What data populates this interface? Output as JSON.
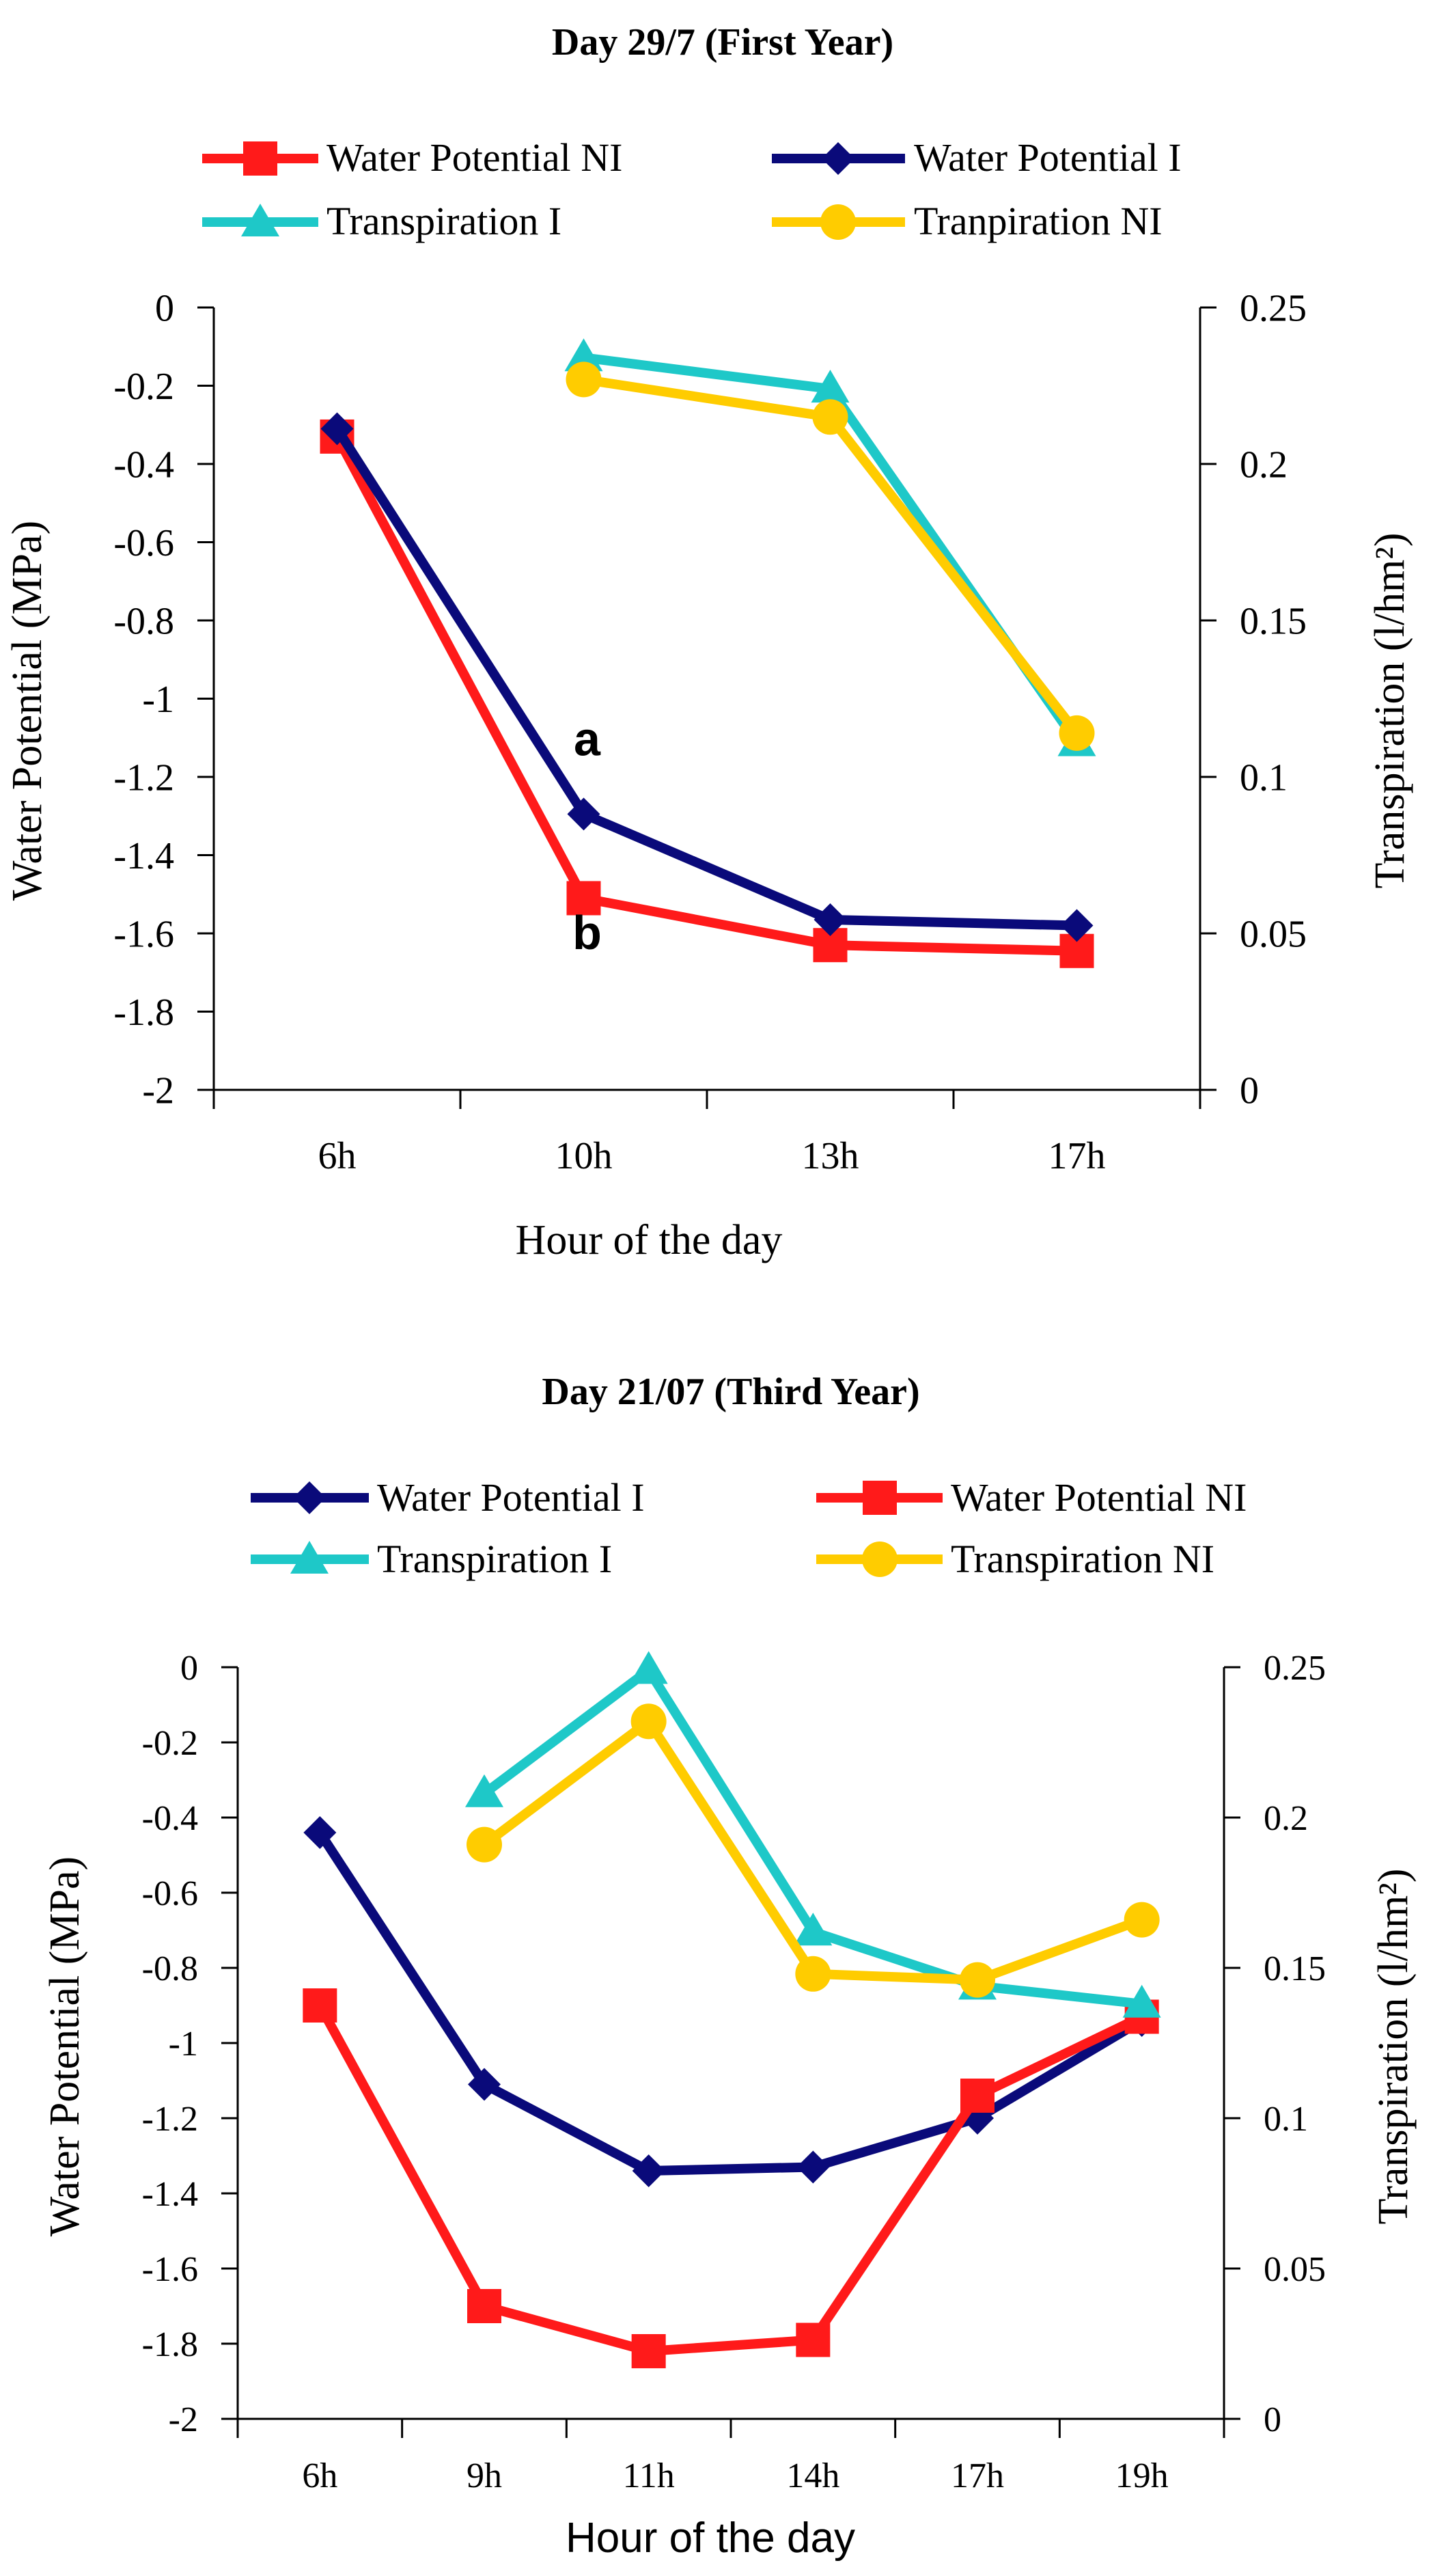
{
  "chart_data": [
    {
      "type": "line",
      "title": "Day 29/7 (First Year)",
      "xlabel": "Hour of the day",
      "ylabel": "Water Potential  (MPa)",
      "y2label": "Transpiration (l/hm²)",
      "categories": [
        "6h",
        "10h",
        "13h",
        "17h"
      ],
      "ylim": [
        -2,
        0
      ],
      "yticks": [
        "0",
        "-0.2",
        "-0.4",
        "-0.6",
        "-0.8",
        "-1",
        "-1.2",
        "-1.4",
        "-1.6",
        "-1.8",
        "-2"
      ],
      "y2lim": [
        0,
        0.25
      ],
      "y2ticks": [
        "0.25",
        "0.2",
        "0.15",
        "0.1",
        "0.05",
        "0"
      ],
      "legend": [
        "Water Potential NI",
        "Water Potential  I",
        "Transpiration I",
        "Tranpiration NI"
      ],
      "series": [
        {
          "name": "Water Potential NI",
          "axis": "left",
          "color": "#ff1a1a",
          "marker": "square",
          "values": [
            -0.33,
            -1.51,
            -1.63,
            -1.645
          ]
        },
        {
          "name": "Water Potential  I",
          "axis": "left",
          "color": "#0a0a7a",
          "marker": "diamond",
          "values": [
            -0.31,
            -1.295,
            -1.565,
            -1.58
          ]
        },
        {
          "name": "Transpiration I",
          "axis": "right",
          "color": "#1ec8c8",
          "marker": "triangle",
          "values": [
            null,
            0.234,
            0.224,
            0.111
          ]
        },
        {
          "name": "Tranpiration NI",
          "axis": "right",
          "color": "#ffcc00",
          "marker": "circle",
          "values": [
            null,
            0.227,
            0.215,
            0.114
          ]
        }
      ],
      "annotations": [
        {
          "text": "a",
          "category": "10h",
          "value": -1.145
        },
        {
          "text": "b",
          "category": "10h",
          "value": -1.64
        }
      ]
    },
    {
      "type": "line",
      "title": "Day 21/07 (Third Year)",
      "xlabel": "Hour of the day",
      "ylabel": "Water Potential (MPa)",
      "y2label": "Transpiration (l/hm²)",
      "categories": [
        "6h",
        "9h",
        "11h",
        "14h",
        "17h",
        "19h"
      ],
      "ylim": [
        -2,
        0
      ],
      "yticks": [
        "0",
        "-0.2",
        "-0.4",
        "-0.6",
        "-0.8",
        "-1",
        "-1.2",
        "-1.4",
        "-1.6",
        "-1.8",
        "-2"
      ],
      "y2lim": [
        0,
        0.25
      ],
      "y2ticks": [
        "0.25",
        "0.2",
        "0.15",
        "0.1",
        "0.05",
        "0"
      ],
      "legend": [
        "Water Potential  I",
        "Water Potential NI",
        "Transpiration I",
        "Transpiration NI"
      ],
      "series": [
        {
          "name": "Water Potential  I",
          "axis": "left",
          "color": "#0a0a7a",
          "marker": "diamond",
          "values": [
            -0.44,
            -1.11,
            -1.34,
            -1.33,
            -1.2,
            -0.94
          ]
        },
        {
          "name": "Water Potential NI",
          "axis": "left",
          "color": "#ff1a1a",
          "marker": "square",
          "values": [
            -0.9,
            -1.7,
            -1.82,
            -1.79,
            -1.14,
            -0.93
          ]
        },
        {
          "name": "Transpiration I",
          "axis": "right",
          "color": "#1ec8c8",
          "marker": "triangle",
          "values": [
            null,
            0.208,
            0.249,
            0.162,
            0.144,
            0.138
          ]
        },
        {
          "name": "Transpiration NI",
          "axis": "right",
          "color": "#ffcc00",
          "marker": "circle",
          "values": [
            null,
            0.191,
            0.232,
            0.148,
            0.146,
            0.166
          ]
        }
      ]
    }
  ]
}
